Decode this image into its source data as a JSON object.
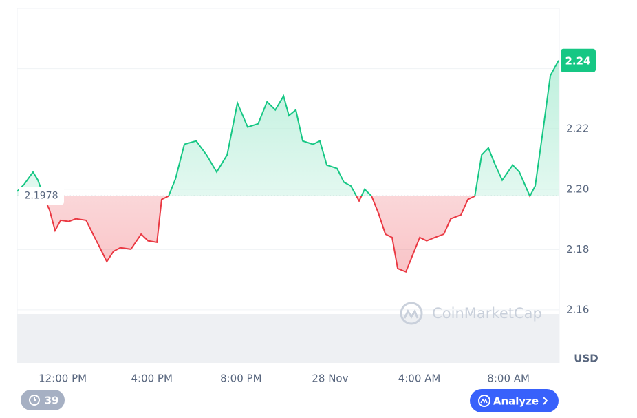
{
  "chart_data": {
    "type": "line",
    "x": [
      9.96,
      10.27,
      10.67,
      10.89,
      11.2,
      11.41,
      11.66,
      11.91,
      12.28,
      12.59,
      13.05,
      13.36,
      13.67,
      13.98,
      14.28,
      14.59,
      15.06,
      15.52,
      15.83,
      16.23,
      16.44,
      16.75,
      17.06,
      17.46,
      17.99,
      18.45,
      18.91,
      19.38,
      19.84,
      20.3,
      20.77,
      21.17,
      21.54,
      21.91,
      22.15,
      22.46,
      22.77,
      23.23,
      23.54,
      23.85,
      24.31,
      24.62,
      24.93,
      25.3,
      25.55,
      25.86,
      26.17,
      26.48,
      26.78,
      27.03,
      27.4,
      27.71,
      28.02,
      28.33,
      28.7,
      29.1,
      29.41,
      29.87,
      30.18,
      30.49,
      30.8,
      31.1,
      31.41,
      31.72,
      32.19,
      32.49,
      32.96,
      33.2,
      33.57,
      33.88,
      34.25
    ],
    "values": [
      2.1993,
      2.2016,
      2.2057,
      2.203,
      2.1966,
      2.1931,
      2.1863,
      2.1897,
      2.1893,
      2.1902,
      2.1897,
      2.1851,
      2.1806,
      2.176,
      2.1794,
      2.1806,
      2.1801,
      2.1851,
      2.1829,
      2.1824,
      2.1966,
      2.1977,
      2.2034,
      2.2149,
      2.216,
      2.2114,
      2.2057,
      2.2114,
      2.2286,
      2.2206,
      2.2217,
      2.229,
      2.2263,
      2.2309,
      2.2244,
      2.2263,
      2.216,
      2.2149,
      2.216,
      2.208,
      2.2069,
      2.2023,
      2.2011,
      2.1961,
      2.2,
      2.1977,
      2.192,
      2.1851,
      2.184,
      2.1737,
      2.1726,
      2.1783,
      2.184,
      2.1829,
      2.184,
      2.1851,
      2.1902,
      2.1915,
      2.1966,
      2.1977,
      2.2114,
      2.2137,
      2.208,
      2.203,
      2.208,
      2.2057,
      2.1977,
      2.2011,
      2.2206,
      2.2377,
      2.2427
    ],
    "xlim": [
      9.96,
      34.28
    ],
    "xticks": [
      {
        "value": 12,
        "label": "12:00 PM"
      },
      {
        "value": 16,
        "label": "4:00 PM"
      },
      {
        "value": 20,
        "label": "8:00 PM"
      },
      {
        "value": 24,
        "label": "28 Nov"
      },
      {
        "value": 28,
        "label": "4:00 AM"
      },
      {
        "value": 32,
        "label": "8:00 AM"
      }
    ],
    "ylim": [
      2.1424,
      2.26
    ],
    "yticks": [
      2.16,
      2.18,
      {
        "value": 2.2,
        "label": "2.20"
      },
      2.22,
      2.24
    ],
    "grid": true,
    "baseline": 2.1978,
    "up_color": "#16c784",
    "down_color": "#ea3943",
    "price_tag": "2.24",
    "unit": "USD",
    "watermark": "CoinMarketCap"
  },
  "ui": {
    "history_count": "39",
    "analyze_button": "Analyze"
  }
}
